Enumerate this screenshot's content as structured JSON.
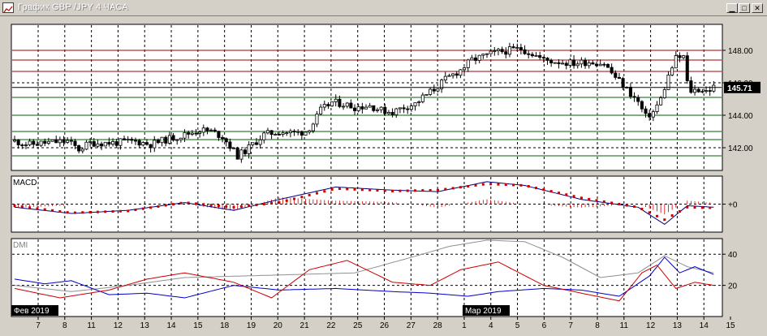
{
  "window": {
    "title": "График GBP /JPY  4 ЧАСА",
    "min_icon": "minimize-icon",
    "max_icon": "maximize-icon",
    "close_icon": "close-icon"
  },
  "colors": {
    "bull": "#ffffff",
    "bear": "#000000",
    "resistance": "#a00000",
    "support": "#006000",
    "macd_signal": "#cc0000",
    "dmi_adx": "#909090",
    "dmi_plus": "#0000cc",
    "dmi_minus": "#cc0000"
  },
  "chart_data": [
    {
      "type": "candlestick",
      "panel": "price",
      "y_ticks": [
        142.0,
        144.0,
        146.0,
        148.0
      ],
      "y_tick_labels": [
        "142.00",
        "144.00",
        "146.00",
        "148.00"
      ],
      "ylim": [
        140.6,
        149.6
      ],
      "current_price": 145.71,
      "current_price_label": "145.71",
      "resistance_levels": [
        148.0,
        147.4,
        146.7
      ],
      "support_levels": [
        145.1,
        144.0,
        143.0,
        142.5,
        141.5
      ],
      "close_path": [
        [
          0,
          142.4
        ],
        [
          4,
          142.2
        ],
        [
          8,
          142.3
        ],
        [
          14,
          142.4
        ],
        [
          17,
          141.9
        ],
        [
          20,
          142.3
        ],
        [
          26,
          142.3
        ],
        [
          32,
          142.4
        ],
        [
          36,
          142.2
        ],
        [
          40,
          142.5
        ],
        [
          45,
          142.8
        ],
        [
          49,
          143.1
        ],
        [
          52,
          143.0
        ],
        [
          55,
          142.7
        ],
        [
          57,
          142.1
        ],
        [
          59,
          141.5
        ],
        [
          61,
          141.8
        ],
        [
          63,
          142.2
        ],
        [
          66,
          142.8
        ],
        [
          70,
          143.0
        ],
        [
          74,
          142.9
        ],
        [
          77,
          143.0
        ],
        [
          79,
          143.5
        ],
        [
          81,
          144.3
        ],
        [
          84,
          144.8
        ],
        [
          87,
          144.7
        ],
        [
          90,
          144.5
        ],
        [
          94,
          144.6
        ],
        [
          97,
          144.3
        ],
        [
          100,
          144.2
        ],
        [
          103,
          144.5
        ],
        [
          106,
          144.7
        ],
        [
          108,
          145.1
        ],
        [
          111,
          145.6
        ],
        [
          114,
          146.2
        ],
        [
          118,
          146.8
        ],
        [
          121,
          147.4
        ],
        [
          125,
          147.7
        ],
        [
          128,
          147.9
        ],
        [
          131,
          148.0
        ],
        [
          134,
          148.1
        ],
        [
          137,
          147.8
        ],
        [
          140,
          147.4
        ],
        [
          144,
          147.3
        ],
        [
          148,
          147.2
        ],
        [
          152,
          147.3
        ],
        [
          156,
          147.2
        ],
        [
          158,
          146.6
        ],
        [
          160,
          146.1
        ],
        [
          162,
          145.6
        ],
        [
          165,
          144.8
        ],
        [
          167,
          143.9
        ],
        [
          169,
          144.2
        ],
        [
          171,
          145.0
        ],
        [
          173,
          146.4
        ],
        [
          175,
          147.5
        ],
        [
          177,
          147.6
        ],
        [
          178,
          146.0
        ],
        [
          179,
          145.5
        ],
        [
          181,
          145.6
        ],
        [
          183,
          145.5
        ],
        [
          185,
          145.7
        ]
      ],
      "series_count": 186,
      "seed": 11
    },
    {
      "type": "line",
      "panel": "MACD",
      "label": "MACD",
      "y_tick_label": "+0",
      "ylim": [
        -0.9,
        0.9
      ],
      "macd_path": [
        [
          0,
          -0.1
        ],
        [
          15,
          -0.3
        ],
        [
          30,
          -0.2
        ],
        [
          45,
          0.05
        ],
        [
          58,
          -0.2
        ],
        [
          70,
          0.15
        ],
        [
          85,
          0.55
        ],
        [
          100,
          0.45
        ],
        [
          112,
          0.4
        ],
        [
          125,
          0.72
        ],
        [
          135,
          0.6
        ],
        [
          150,
          0.15
        ],
        [
          165,
          -0.1
        ],
        [
          172,
          -0.65
        ],
        [
          178,
          -0.05
        ],
        [
          185,
          -0.1
        ]
      ],
      "signal_path": [
        [
          0,
          -0.05
        ],
        [
          15,
          -0.28
        ],
        [
          30,
          -0.22
        ],
        [
          45,
          0.05
        ],
        [
          58,
          -0.1
        ],
        [
          70,
          0.05
        ],
        [
          85,
          0.5
        ],
        [
          100,
          0.42
        ],
        [
          112,
          0.45
        ],
        [
          125,
          0.65
        ],
        [
          135,
          0.6
        ],
        [
          150,
          0.2
        ],
        [
          165,
          -0.1
        ],
        [
          172,
          -0.5
        ],
        [
          178,
          -0.1
        ],
        [
          185,
          -0.12
        ]
      ]
    },
    {
      "type": "line",
      "panel": "DMI",
      "label": "DMI",
      "y_ticks": [
        20,
        40
      ],
      "y_tick_labels": [
        "20",
        "40"
      ],
      "ylim": [
        0,
        50
      ],
      "adx_path": [
        [
          0,
          20
        ],
        [
          15,
          16
        ],
        [
          30,
          20
        ],
        [
          45,
          25
        ],
        [
          60,
          26
        ],
        [
          75,
          27
        ],
        [
          90,
          28
        ],
        [
          105,
          38
        ],
        [
          115,
          45
        ],
        [
          125,
          49
        ],
        [
          135,
          48
        ],
        [
          145,
          38
        ],
        [
          155,
          25
        ],
        [
          165,
          28
        ],
        [
          172,
          39
        ],
        [
          178,
          32
        ],
        [
          185,
          28
        ]
      ],
      "plus_path": [
        [
          0,
          24
        ],
        [
          8,
          21
        ],
        [
          15,
          23
        ],
        [
          25,
          14
        ],
        [
          35,
          15
        ],
        [
          45,
          12
        ],
        [
          58,
          20
        ],
        [
          70,
          17
        ],
        [
          85,
          18
        ],
        [
          100,
          16
        ],
        [
          110,
          15
        ],
        [
          120,
          13
        ],
        [
          128,
          16
        ],
        [
          140,
          18
        ],
        [
          150,
          17
        ],
        [
          160,
          13
        ],
        [
          168,
          26
        ],
        [
          172,
          38
        ],
        [
          176,
          28
        ],
        [
          180,
          32
        ],
        [
          185,
          27
        ]
      ],
      "minus_path": [
        [
          0,
          18
        ],
        [
          12,
          12
        ],
        [
          25,
          17
        ],
        [
          35,
          24
        ],
        [
          45,
          28
        ],
        [
          58,
          22
        ],
        [
          68,
          12
        ],
        [
          78,
          30
        ],
        [
          88,
          36
        ],
        [
          100,
          22
        ],
        [
          110,
          20
        ],
        [
          118,
          30
        ],
        [
          128,
          35
        ],
        [
          140,
          20
        ],
        [
          150,
          15
        ],
        [
          160,
          10
        ],
        [
          166,
          28
        ],
        [
          170,
          33
        ],
        [
          175,
          18
        ],
        [
          180,
          22
        ],
        [
          185,
          20
        ]
      ]
    }
  ],
  "x_axis": {
    "tick_labels": [
      "7",
      "8",
      "11",
      "12",
      "13",
      "14",
      "15",
      "18",
      "19",
      "20",
      "21",
      "22",
      "25",
      "26",
      "27",
      "28",
      "1",
      "4",
      "5",
      "6",
      "7",
      "8",
      "11",
      "12",
      "13",
      "14",
      "15"
    ],
    "month_labels": [
      {
        "text": "Фев 2019",
        "index": 0
      },
      {
        "text": "Мар 2019",
        "index": 16
      }
    ]
  }
}
